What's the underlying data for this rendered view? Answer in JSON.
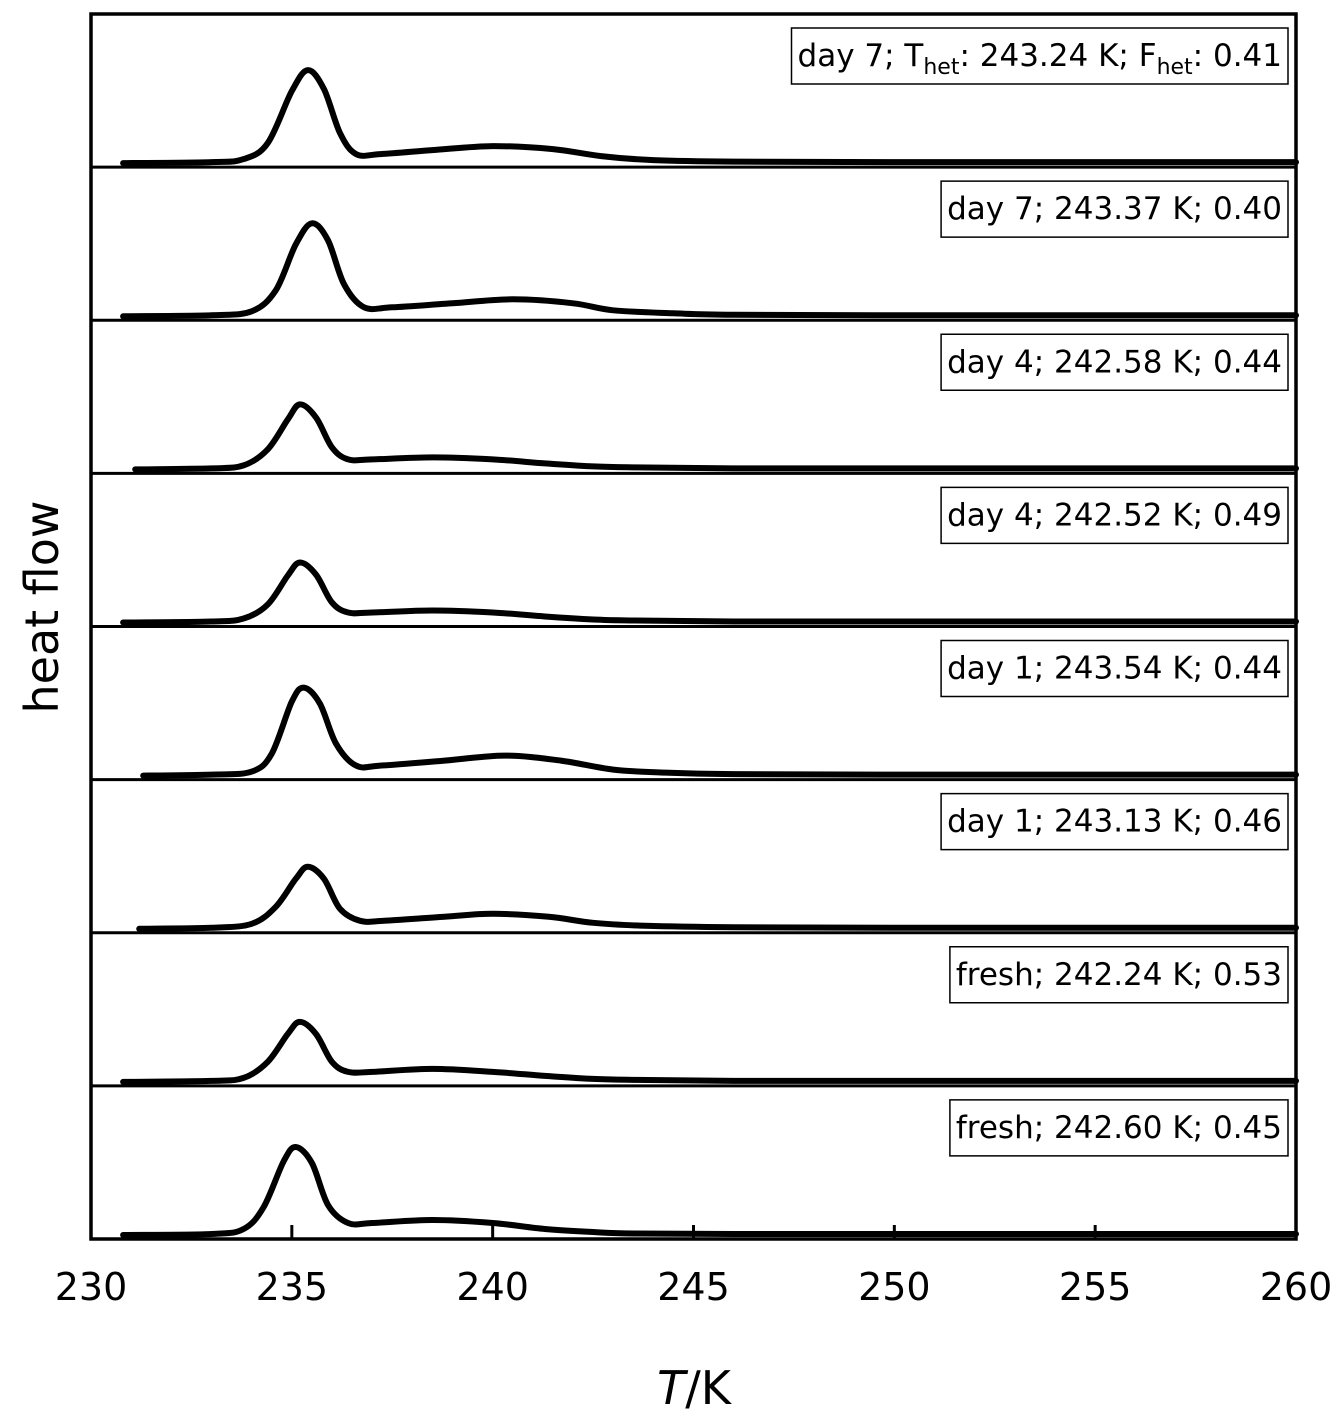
{
  "chart_data": {
    "type": "line",
    "xlabel_italic": "T",
    "xlabel_rest": "/K",
    "ylabel": "heat flow",
    "xlim": [
      230,
      260
    ],
    "xticks": [
      "230",
      "235",
      "240",
      "245",
      "250",
      "255",
      "260"
    ],
    "grid": false,
    "legend_placement": "top-right of each panel",
    "first_label": {
      "prefix": "day 7; T",
      "sub1": "het",
      "middle": ": 243.24 K; F",
      "sub2": "het",
      "suffix": ": 0.41"
    },
    "series": [
      {
        "label": "day 7; T_het: 243.24 K; F_het: 0.41",
        "x": [
          230.8,
          233.0,
          233.8,
          234.4,
          235.0,
          235.4,
          235.8,
          236.2,
          236.6,
          237.2,
          238.5,
          240.0,
          241.5,
          242.7,
          244.0,
          246.0,
          250.0,
          255.0,
          260.0
        ],
        "y": [
          0.0,
          0.01,
          0.04,
          0.2,
          0.72,
          0.93,
          0.74,
          0.3,
          0.09,
          0.09,
          0.13,
          0.17,
          0.14,
          0.07,
          0.03,
          0.015,
          0.01,
          0.01,
          0.01
        ]
      },
      {
        "label": "day 7; 243.37 K; 0.40",
        "x": [
          230.8,
          233.0,
          234.0,
          234.6,
          235.1,
          235.5,
          235.9,
          236.3,
          236.8,
          237.5,
          239.0,
          240.5,
          242.0,
          243.0,
          244.5,
          246.0,
          250.0,
          255.0,
          260.0
        ],
        "y": [
          0.0,
          0.01,
          0.05,
          0.26,
          0.72,
          0.93,
          0.76,
          0.32,
          0.09,
          0.09,
          0.13,
          0.17,
          0.13,
          0.06,
          0.03,
          0.015,
          0.01,
          0.01,
          0.01
        ]
      },
      {
        "label": "day 4; 242.58 K; 0.44",
        "x": [
          231.1,
          233.0,
          233.8,
          234.4,
          234.9,
          235.2,
          235.6,
          236.0,
          236.4,
          237.0,
          238.5,
          240.0,
          241.3,
          242.5,
          243.5,
          246.0,
          250.0,
          255.0,
          260.0
        ],
        "y": [
          0.0,
          0.01,
          0.04,
          0.2,
          0.5,
          0.65,
          0.52,
          0.22,
          0.1,
          0.1,
          0.12,
          0.1,
          0.06,
          0.03,
          0.02,
          0.01,
          0.01,
          0.01,
          0.01
        ]
      },
      {
        "label": "day 4; 242.52 K; 0.49",
        "x": [
          230.8,
          233.0,
          233.8,
          234.4,
          234.9,
          235.2,
          235.6,
          236.0,
          236.4,
          237.0,
          238.5,
          240.0,
          241.3,
          242.5,
          243.5,
          246.0,
          250.0,
          255.0,
          260.0
        ],
        "y": [
          0.0,
          0.01,
          0.04,
          0.18,
          0.47,
          0.6,
          0.48,
          0.2,
          0.1,
          0.1,
          0.12,
          0.1,
          0.06,
          0.03,
          0.02,
          0.01,
          0.01,
          0.01,
          0.01
        ]
      },
      {
        "label": "day 1; 243.54 K; 0.44",
        "x": [
          231.3,
          233.0,
          234.0,
          234.5,
          235.0,
          235.3,
          235.7,
          236.1,
          236.6,
          237.2,
          238.8,
          240.3,
          241.7,
          243.0,
          244.3,
          246.0,
          250.0,
          255.0,
          260.0
        ],
        "y": [
          0.0,
          0.01,
          0.04,
          0.22,
          0.74,
          0.88,
          0.72,
          0.32,
          0.1,
          0.1,
          0.15,
          0.2,
          0.15,
          0.06,
          0.03,
          0.015,
          0.01,
          0.01,
          0.01
        ]
      },
      {
        "label": "day 1; 243.13 K; 0.46",
        "x": [
          231.2,
          233.0,
          234.0,
          234.6,
          235.1,
          235.4,
          235.8,
          236.2,
          236.7,
          237.3,
          238.8,
          240.0,
          241.4,
          242.5,
          243.8,
          246.0,
          250.0,
          255.0,
          260.0
        ],
        "y": [
          0.0,
          0.01,
          0.05,
          0.22,
          0.5,
          0.62,
          0.5,
          0.2,
          0.08,
          0.08,
          0.12,
          0.15,
          0.12,
          0.06,
          0.03,
          0.015,
          0.01,
          0.01,
          0.01
        ]
      },
      {
        "label": "fresh; 242.24 K; 0.53",
        "x": [
          230.8,
          233.0,
          233.8,
          234.4,
          234.9,
          235.2,
          235.6,
          236.0,
          236.4,
          237.0,
          238.5,
          240.0,
          241.3,
          242.5,
          243.5,
          246.0,
          250.0,
          255.0,
          260.0
        ],
        "y": [
          0.0,
          0.01,
          0.04,
          0.2,
          0.48,
          0.6,
          0.48,
          0.2,
          0.1,
          0.1,
          0.13,
          0.1,
          0.06,
          0.03,
          0.02,
          0.01,
          0.01,
          0.01,
          0.01
        ]
      },
      {
        "label": "fresh; 242.60 K; 0.45",
        "x": [
          230.8,
          233.0,
          233.8,
          234.3,
          234.8,
          235.1,
          235.5,
          235.9,
          236.4,
          237.0,
          238.5,
          240.0,
          241.3,
          242.5,
          243.5,
          246.0,
          250.0,
          255.0,
          260.0
        ],
        "y": [
          0.0,
          0.01,
          0.06,
          0.28,
          0.74,
          0.88,
          0.72,
          0.3,
          0.12,
          0.12,
          0.15,
          0.12,
          0.06,
          0.03,
          0.015,
          0.01,
          0.01,
          0.01,
          0.01
        ]
      }
    ]
  }
}
